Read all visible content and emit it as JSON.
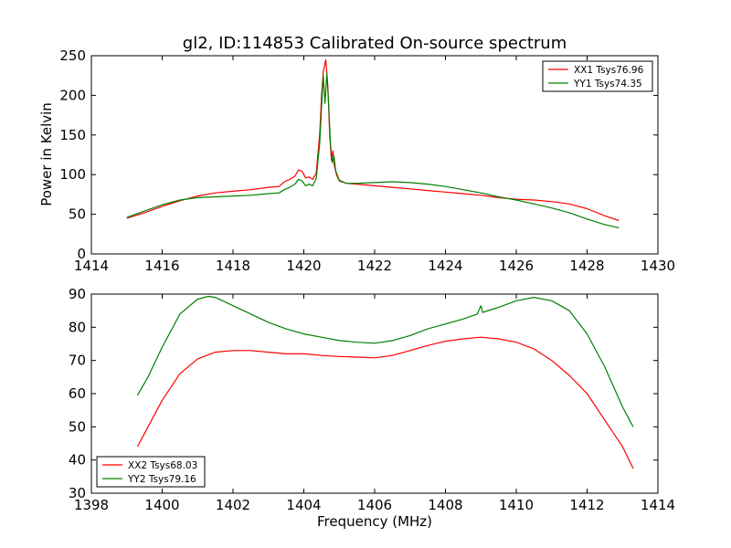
{
  "chart_data": [
    {
      "type": "line",
      "title": "gl2, ID:114853 Calibrated On-source spectrum",
      "xlabel": "",
      "ylabel": "Power in Kelvin",
      "xlim": [
        1414,
        1430
      ],
      "ylim": [
        0,
        250
      ],
      "xticks": [
        1414,
        1416,
        1418,
        1420,
        1422,
        1424,
        1426,
        1428,
        1430
      ],
      "yticks": [
        0,
        50,
        100,
        150,
        200,
        250
      ],
      "legend_position": "top-right",
      "series": [
        {
          "name": "XX1 Tsys76.96",
          "color": "#ff0000",
          "points": [
            [
              1415.0,
              45
            ],
            [
              1415.5,
              52
            ],
            [
              1416.0,
              60
            ],
            [
              1416.5,
              67
            ],
            [
              1417.0,
              73
            ],
            [
              1417.5,
              77
            ],
            [
              1418.0,
              79
            ],
            [
              1418.5,
              81
            ],
            [
              1419.0,
              84
            ],
            [
              1419.3,
              85
            ],
            [
              1419.45,
              91
            ],
            [
              1419.6,
              94
            ],
            [
              1419.75,
              98
            ],
            [
              1419.85,
              106
            ],
            [
              1419.95,
              104
            ],
            [
              1420.05,
              96
            ],
            [
              1420.15,
              97
            ],
            [
              1420.25,
              94
            ],
            [
              1420.35,
              102
            ],
            [
              1420.45,
              152
            ],
            [
              1420.5,
              200
            ],
            [
              1420.55,
              230
            ],
            [
              1420.62,
              245
            ],
            [
              1420.68,
              210
            ],
            [
              1420.73,
              150
            ],
            [
              1420.78,
              118
            ],
            [
              1420.82,
              130
            ],
            [
              1420.86,
              112
            ],
            [
              1420.92,
              100
            ],
            [
              1421.0,
              92
            ],
            [
              1421.2,
              89
            ],
            [
              1421.5,
              88
            ],
            [
              1422.0,
              86
            ],
            [
              1422.5,
              84
            ],
            [
              1423.0,
              82
            ],
            [
              1423.5,
              80
            ],
            [
              1424.0,
              78
            ],
            [
              1424.5,
              76
            ],
            [
              1425.0,
              74
            ],
            [
              1425.5,
              71
            ],
            [
              1426.0,
              69
            ],
            [
              1426.5,
              68
            ],
            [
              1427.0,
              66
            ],
            [
              1427.5,
              63
            ],
            [
              1428.0,
              57
            ],
            [
              1428.5,
              48
            ],
            [
              1428.9,
              42
            ]
          ]
        },
        {
          "name": "YY1 Tsys74.35",
          "color": "#008000",
          "points": [
            [
              1415.0,
              46
            ],
            [
              1415.5,
              54
            ],
            [
              1416.0,
              62
            ],
            [
              1416.5,
              68
            ],
            [
              1417.0,
              71
            ],
            [
              1417.5,
              72
            ],
            [
              1418.0,
              73
            ],
            [
              1418.5,
              74
            ],
            [
              1419.0,
              76
            ],
            [
              1419.3,
              77
            ],
            [
              1419.45,
              81
            ],
            [
              1419.6,
              84
            ],
            [
              1419.75,
              88
            ],
            [
              1419.85,
              94
            ],
            [
              1419.95,
              92
            ],
            [
              1420.05,
              86
            ],
            [
              1420.15,
              88
            ],
            [
              1420.25,
              86
            ],
            [
              1420.35,
              95
            ],
            [
              1420.45,
              140
            ],
            [
              1420.5,
              185
            ],
            [
              1420.55,
              225
            ],
            [
              1420.6,
              190
            ],
            [
              1420.65,
              228
            ],
            [
              1420.7,
              190
            ],
            [
              1420.75,
              140
            ],
            [
              1420.8,
              115
            ],
            [
              1420.85,
              124
            ],
            [
              1420.9,
              105
            ],
            [
              1421.0,
              93
            ],
            [
              1421.2,
              89
            ],
            [
              1421.5,
              89
            ],
            [
              1422.0,
              90
            ],
            [
              1422.5,
              91
            ],
            [
              1423.0,
              90
            ],
            [
              1423.5,
              88
            ],
            [
              1424.0,
              85
            ],
            [
              1424.5,
              81
            ],
            [
              1425.0,
              77
            ],
            [
              1425.5,
              72
            ],
            [
              1426.0,
              68
            ],
            [
              1426.5,
              63
            ],
            [
              1427.0,
              58
            ],
            [
              1427.5,
              52
            ],
            [
              1428.0,
              44
            ],
            [
              1428.5,
              37
            ],
            [
              1428.9,
              33
            ]
          ]
        }
      ]
    },
    {
      "type": "line",
      "title": "",
      "xlabel": "Frequency (MHz)",
      "ylabel": "",
      "xlim": [
        1398,
        1414
      ],
      "ylim": [
        30,
        90
      ],
      "xticks": [
        1398,
        1400,
        1402,
        1404,
        1406,
        1408,
        1410,
        1412,
        1414
      ],
      "yticks": [
        30,
        40,
        50,
        60,
        70,
        80,
        90
      ],
      "legend_position": "bottom-left",
      "series": [
        {
          "name": "XX2 Tsys68.03",
          "color": "#ff0000",
          "points": [
            [
              1399.3,
              44
            ],
            [
              1399.6,
              50
            ],
            [
              1400.0,
              58
            ],
            [
              1400.5,
              66
            ],
            [
              1401.0,
              70.5
            ],
            [
              1401.5,
              72.5
            ],
            [
              1402.0,
              73
            ],
            [
              1402.5,
              73
            ],
            [
              1403.0,
              72.5
            ],
            [
              1403.5,
              72
            ],
            [
              1404.0,
              72
            ],
            [
              1404.5,
              71.5
            ],
            [
              1405.0,
              71.2
            ],
            [
              1405.5,
              71
            ],
            [
              1406.0,
              70.8
            ],
            [
              1406.5,
              71.5
            ],
            [
              1407.0,
              73
            ],
            [
              1407.5,
              74.5
            ],
            [
              1408.0,
              75.8
            ],
            [
              1408.5,
              76.5
            ],
            [
              1409.0,
              77
            ],
            [
              1409.5,
              76.5
            ],
            [
              1410.0,
              75.5
            ],
            [
              1410.5,
              73.5
            ],
            [
              1411.0,
              70
            ],
            [
              1411.5,
              65.5
            ],
            [
              1412.0,
              60
            ],
            [
              1412.5,
              52
            ],
            [
              1413.0,
              44
            ],
            [
              1413.3,
              37.5
            ]
          ]
        },
        {
          "name": "YY2 Tsys79.16",
          "color": "#008000",
          "points": [
            [
              1399.3,
              59.5
            ],
            [
              1399.6,
              65
            ],
            [
              1400.0,
              74
            ],
            [
              1400.5,
              84
            ],
            [
              1401.0,
              88.5
            ],
            [
              1401.3,
              89.3
            ],
            [
              1401.5,
              89
            ],
            [
              1402.0,
              86.5
            ],
            [
              1402.5,
              84
            ],
            [
              1403.0,
              81.5
            ],
            [
              1403.5,
              79.5
            ],
            [
              1404.0,
              78
            ],
            [
              1404.5,
              77
            ],
            [
              1405.0,
              76
            ],
            [
              1405.5,
              75.5
            ],
            [
              1406.0,
              75.2
            ],
            [
              1406.5,
              76
            ],
            [
              1407.0,
              77.5
            ],
            [
              1407.5,
              79.5
            ],
            [
              1408.0,
              81
            ],
            [
              1408.5,
              82.5
            ],
            [
              1408.9,
              84
            ],
            [
              1409.0,
              86.5
            ],
            [
              1409.05,
              84.5
            ],
            [
              1409.5,
              86
            ],
            [
              1410.0,
              88
            ],
            [
              1410.5,
              89
            ],
            [
              1411.0,
              88
            ],
            [
              1411.5,
              85
            ],
            [
              1412.0,
              78
            ],
            [
              1412.5,
              68
            ],
            [
              1413.0,
              56
            ],
            [
              1413.3,
              50
            ]
          ]
        }
      ]
    }
  ]
}
